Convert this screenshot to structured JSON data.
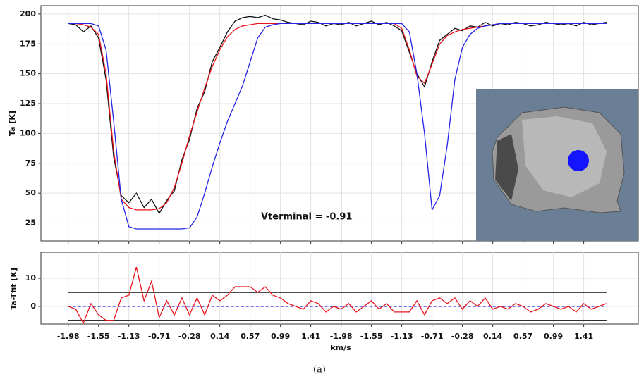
{
  "chart_data": [
    {
      "type": "line",
      "ylabel": "Ta [K]",
      "annotation": "Vterminal = -0.91",
      "grid": true,
      "ylim": [
        10,
        207
      ],
      "yticks": [
        25,
        50,
        75,
        100,
        125,
        150,
        175,
        200
      ],
      "x": [
        0,
        0.25,
        0.5,
        0.75,
        1,
        1.25,
        1.5,
        1.75,
        2,
        2.25,
        2.5,
        2.75,
        3,
        3.25,
        3.5,
        3.75,
        4,
        4.25,
        4.5,
        4.75,
        5,
        5.25,
        5.5,
        5.75,
        6,
        6.25,
        6.5,
        6.75,
        7,
        7.25,
        7.5,
        7.75,
        8,
        8.25,
        8.5,
        8.75,
        9,
        9.25,
        9.5,
        9.75,
        10,
        10.25,
        10.5,
        10.75,
        11,
        11.25,
        11.5,
        11.75,
        12,
        12.25,
        12.5,
        12.75,
        13,
        13.25,
        13.5,
        13.75,
        14,
        14.25,
        14.5,
        14.75,
        15,
        15.25,
        15.5,
        15.75,
        16,
        16.25,
        16.5,
        16.75,
        17,
        17.25,
        17.5,
        17.75
      ],
      "series": [
        {
          "color": "#111111",
          "values": [
            192,
            191,
            185,
            190,
            180,
            145,
            80,
            48,
            42,
            50,
            38,
            45,
            33,
            44,
            52,
            78,
            95,
            121,
            135,
            160,
            172,
            185,
            194,
            197,
            198,
            197,
            199,
            196,
            195,
            193,
            192,
            191,
            194,
            193,
            190,
            192,
            191,
            193,
            190,
            192,
            194,
            191,
            193,
            190,
            186,
            168,
            150,
            139,
            160,
            178,
            183,
            188,
            186,
            190,
            189,
            193,
            190,
            192,
            191,
            193,
            192,
            190,
            191,
            193,
            192,
            191,
            192,
            190,
            193,
            191,
            192,
            193
          ]
        },
        {
          "color": "#e8141c",
          "values": [
            192,
            192,
            191,
            189,
            183,
            150,
            85,
            45,
            38,
            36,
            36,
            36,
            37,
            42,
            55,
            75,
            98,
            118,
            138,
            156,
            170,
            181,
            187,
            190,
            191,
            192,
            192,
            192,
            192,
            192,
            192,
            192,
            192,
            192,
            192,
            192,
            192,
            192,
            192,
            192,
            192,
            192,
            192,
            192,
            188,
            170,
            148,
            142,
            158,
            175,
            182,
            185,
            187,
            188,
            189,
            190,
            191,
            192,
            192,
            192,
            192,
            192,
            192,
            192,
            192,
            192,
            192,
            192,
            192,
            192,
            192,
            192
          ]
        },
        {
          "color": "#2424e6",
          "values": [
            192,
            192,
            192,
            192,
            190,
            170,
            110,
            45,
            22,
            20,
            20,
            20,
            20,
            20,
            20,
            20,
            21,
            30,
            50,
            72,
            92,
            110,
            125,
            140,
            160,
            180,
            189,
            191,
            192,
            192,
            192,
            192,
            192,
            192,
            192,
            192,
            192,
            192,
            192,
            192,
            192,
            192,
            192,
            192,
            192,
            185,
            150,
            100,
            36,
            48,
            90,
            145,
            172,
            183,
            188,
            190,
            191,
            192,
            192,
            192,
            192,
            192,
            192,
            192,
            192,
            192,
            192,
            192,
            192,
            192,
            192,
            192
          ]
        }
      ]
    },
    {
      "type": "line",
      "ylabel": "Ta-Tfit [K]",
      "xlabel": "km/s",
      "grid": true,
      "xlim": [
        -0.9,
        18.8
      ],
      "ylim": [
        -6.3,
        19.3
      ],
      "yticks": [
        0,
        10
      ],
      "xticks": [
        {
          "value": 0,
          "label": "-1.98"
        },
        {
          "value": 1,
          "label": "-1.55"
        },
        {
          "value": 2,
          "label": "-1.13"
        },
        {
          "value": 3,
          "label": "-0.71"
        },
        {
          "value": 4,
          "label": "-0.28"
        },
        {
          "value": 5,
          "label": "0.14"
        },
        {
          "value": 6,
          "label": "0.57"
        },
        {
          "value": 7,
          "label": "0.99"
        },
        {
          "value": 8,
          "label": "1.41"
        },
        {
          "value": 9,
          "label": "-1.98"
        },
        {
          "value": 10,
          "label": "-1.55"
        },
        {
          "value": 11,
          "label": "-1.13"
        },
        {
          "value": 12,
          "label": "-0.71"
        },
        {
          "value": 13,
          "label": "-0.28"
        },
        {
          "value": 14,
          "label": "0.14"
        },
        {
          "value": 15,
          "label": "0.57"
        },
        {
          "value": 16,
          "label": "0.99"
        },
        {
          "value": 17,
          "label": "1.41"
        }
      ],
      "reference_lines": [
        5,
        -5
      ],
      "reference_color": "#111111",
      "baseline": 0,
      "baseline_color": "#2424e6",
      "series": [
        {
          "color": "#e8141c",
          "values": [
            0,
            -1,
            -6,
            1,
            -3,
            -5,
            -5,
            3,
            4,
            14,
            2,
            9,
            -4,
            2,
            -3,
            3,
            -3,
            3,
            -3,
            4,
            2,
            4,
            7,
            7,
            7,
            5,
            7,
            4,
            3,
            1,
            0,
            -1,
            2,
            1,
            -2,
            0,
            -1,
            1,
            -2,
            0,
            2,
            -1,
            1,
            -2,
            -2,
            -2,
            2,
            -3,
            2,
            3,
            1,
            3,
            -1,
            2,
            0,
            3,
            -1,
            0,
            -1,
            1,
            0,
            -2,
            -1,
            1,
            0,
            -1,
            0,
            -2,
            1,
            -1,
            0,
            1
          ]
        }
      ]
    }
  ],
  "caption": "(a)"
}
